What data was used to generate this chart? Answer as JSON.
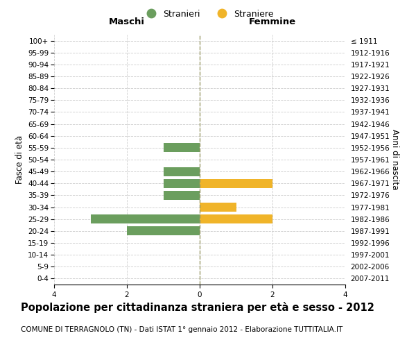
{
  "age_groups": [
    "100+",
    "95-99",
    "90-94",
    "85-89",
    "80-84",
    "75-79",
    "70-74",
    "65-69",
    "60-64",
    "55-59",
    "50-54",
    "45-49",
    "40-44",
    "35-39",
    "30-34",
    "25-29",
    "20-24",
    "15-19",
    "10-14",
    "5-9",
    "0-4"
  ],
  "birth_years": [
    "≤ 1911",
    "1912-1916",
    "1917-1921",
    "1922-1926",
    "1927-1931",
    "1932-1936",
    "1937-1941",
    "1942-1946",
    "1947-1951",
    "1952-1956",
    "1957-1961",
    "1962-1966",
    "1967-1971",
    "1972-1976",
    "1977-1981",
    "1982-1986",
    "1987-1991",
    "1992-1996",
    "1997-2001",
    "2002-2006",
    "2007-2011"
  ],
  "males": [
    0,
    0,
    0,
    0,
    0,
    0,
    0,
    0,
    0,
    -1,
    0,
    -1,
    -1,
    -1,
    0,
    -3,
    -2,
    0,
    0,
    0,
    0
  ],
  "females": [
    0,
    0,
    0,
    0,
    0,
    0,
    0,
    0,
    0,
    0,
    0,
    0,
    2,
    0,
    1,
    2,
    0,
    0,
    0,
    0,
    0
  ],
  "male_color": "#6b9e5e",
  "female_color": "#f0b429",
  "background_color": "#ffffff",
  "grid_color": "#cccccc",
  "title": "Popolazione per cittadinanza straniera per età e sesso - 2012",
  "subtitle": "COMUNE DI TERRAGNOLO (TN) - Dati ISTAT 1° gennaio 2012 - Elaborazione TUTTITALIA.IT",
  "xlabel_left": "Maschi",
  "xlabel_right": "Femmine",
  "ylabel_left": "Fasce di età",
  "ylabel_right": "Anni di nascita",
  "legend_male": "Stranieri",
  "legend_female": "Straniere",
  "xlim": [
    -4,
    4
  ],
  "xticks": [
    -4,
    -2,
    0,
    2,
    4
  ],
  "xtick_labels": [
    "4",
    "2",
    "0",
    "2",
    "4"
  ],
  "bar_height": 0.75,
  "center_line_color": "#999966",
  "title_fontsize": 10.5,
  "subtitle_fontsize": 7.5,
  "axis_label_fontsize": 8.5,
  "tick_fontsize": 7.5
}
